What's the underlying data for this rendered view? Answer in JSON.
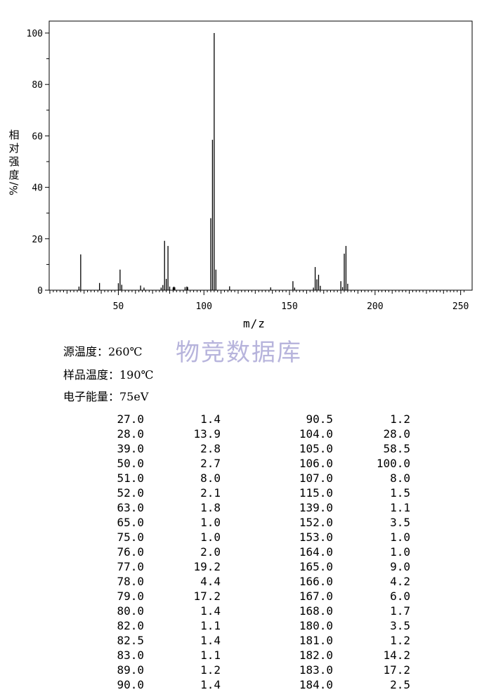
{
  "chart_data": {
    "type": "bar",
    "xlabel": "m/z",
    "ylabel": [
      "相",
      "对",
      "强",
      "度",
      "%/"
    ],
    "xlim": [
      10,
      252
    ],
    "ylim": [
      0,
      100
    ],
    "xticks": [
      50,
      100,
      150,
      200,
      250
    ],
    "yticks": [
      0,
      20,
      40,
      60,
      80,
      100
    ],
    "peaks": [
      {
        "mz": 27.0,
        "intensity": 1.4
      },
      {
        "mz": 28.0,
        "intensity": 13.9
      },
      {
        "mz": 39.0,
        "intensity": 2.8
      },
      {
        "mz": 50.0,
        "intensity": 2.7
      },
      {
        "mz": 51.0,
        "intensity": 8.0
      },
      {
        "mz": 52.0,
        "intensity": 2.1
      },
      {
        "mz": 63.0,
        "intensity": 1.8
      },
      {
        "mz": 65.0,
        "intensity": 1.0
      },
      {
        "mz": 75.0,
        "intensity": 1.0
      },
      {
        "mz": 76.0,
        "intensity": 2.0
      },
      {
        "mz": 77.0,
        "intensity": 19.2
      },
      {
        "mz": 78.0,
        "intensity": 4.4
      },
      {
        "mz": 79.0,
        "intensity": 17.2
      },
      {
        "mz": 80.0,
        "intensity": 1.4
      },
      {
        "mz": 82.0,
        "intensity": 1.1
      },
      {
        "mz": 82.5,
        "intensity": 1.4
      },
      {
        "mz": 83.0,
        "intensity": 1.1
      },
      {
        "mz": 89.0,
        "intensity": 1.2
      },
      {
        "mz": 90.0,
        "intensity": 1.4
      },
      {
        "mz": 90.5,
        "intensity": 1.2
      },
      {
        "mz": 104.0,
        "intensity": 28.0
      },
      {
        "mz": 105.0,
        "intensity": 58.5
      },
      {
        "mz": 106.0,
        "intensity": 100.0
      },
      {
        "mz": 107.0,
        "intensity": 8.0
      },
      {
        "mz": 115.0,
        "intensity": 1.5
      },
      {
        "mz": 139.0,
        "intensity": 1.1
      },
      {
        "mz": 152.0,
        "intensity": 3.5
      },
      {
        "mz": 153.0,
        "intensity": 1.0
      },
      {
        "mz": 164.0,
        "intensity": 1.0
      },
      {
        "mz": 165.0,
        "intensity": 9.0
      },
      {
        "mz": 166.0,
        "intensity": 4.2
      },
      {
        "mz": 167.0,
        "intensity": 6.0
      },
      {
        "mz": 168.0,
        "intensity": 1.7
      },
      {
        "mz": 180.0,
        "intensity": 3.5
      },
      {
        "mz": 181.0,
        "intensity": 1.2
      },
      {
        "mz": 182.0,
        "intensity": 14.2
      },
      {
        "mz": 183.0,
        "intensity": 17.2
      },
      {
        "mz": 184.0,
        "intensity": 2.5
      }
    ]
  },
  "watermark": "物竞数据库",
  "conditions": {
    "source_temp": "源温度：260℃",
    "sample_temp": "样品温度：190℃",
    "electron_energy": "电子能量：75eV"
  },
  "table": {
    "left": [
      [
        "27.0",
        "1.4"
      ],
      [
        "28.0",
        "13.9"
      ],
      [
        "39.0",
        "2.8"
      ],
      [
        "50.0",
        "2.7"
      ],
      [
        "51.0",
        "8.0"
      ],
      [
        "52.0",
        "2.1"
      ],
      [
        "63.0",
        "1.8"
      ],
      [
        "65.0",
        "1.0"
      ],
      [
        "75.0",
        "1.0"
      ],
      [
        "76.0",
        "2.0"
      ],
      [
        "77.0",
        "19.2"
      ],
      [
        "78.0",
        "4.4"
      ],
      [
        "79.0",
        "17.2"
      ],
      [
        "80.0",
        "1.4"
      ],
      [
        "82.0",
        "1.1"
      ],
      [
        "82.5",
        "1.4"
      ],
      [
        "83.0",
        "1.1"
      ],
      [
        "89.0",
        "1.2"
      ],
      [
        "90.0",
        "1.4"
      ]
    ],
    "right": [
      [
        "90.5",
        "1.2"
      ],
      [
        "104.0",
        "28.0"
      ],
      [
        "105.0",
        "58.5"
      ],
      [
        "106.0",
        "100.0"
      ],
      [
        "107.0",
        "8.0"
      ],
      [
        "115.0",
        "1.5"
      ],
      [
        "139.0",
        "1.1"
      ],
      [
        "152.0",
        "3.5"
      ],
      [
        "153.0",
        "1.0"
      ],
      [
        "164.0",
        "1.0"
      ],
      [
        "165.0",
        "9.0"
      ],
      [
        "166.0",
        "4.2"
      ],
      [
        "167.0",
        "6.0"
      ],
      [
        "168.0",
        "1.7"
      ],
      [
        "180.0",
        "3.5"
      ],
      [
        "181.0",
        "1.2"
      ],
      [
        "182.0",
        "14.2"
      ],
      [
        "183.0",
        "17.2"
      ],
      [
        "184.0",
        "2.5"
      ]
    ]
  }
}
